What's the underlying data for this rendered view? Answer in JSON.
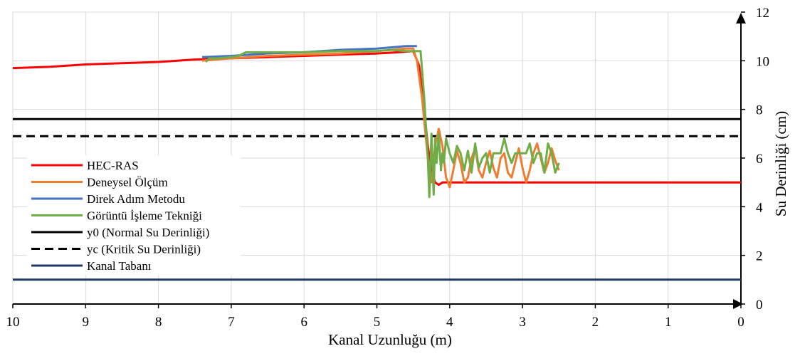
{
  "chart_data": {
    "type": "line",
    "xlabel": "Kanal Uzunluğu (m)",
    "ylabel": "Su Derinliği (cm)",
    "xlim": [
      10,
      0
    ],
    "ylim": [
      0,
      12
    ],
    "x_reversed": true,
    "xticks": [
      "10",
      "9",
      "8",
      "7",
      "6",
      "5",
      "4",
      "3",
      "2",
      "1",
      "0"
    ],
    "yticks": [
      "0",
      "2",
      "4",
      "6",
      "8",
      "10",
      "12"
    ],
    "grid": true,
    "legend_position": "left",
    "series": [
      {
        "name": "HEC-RAS",
        "color": "#ff0000",
        "dash": "solid",
        "x": [
          10,
          9.5,
          9,
          8.5,
          8,
          7.5,
          7,
          6.5,
          6,
          5.5,
          5,
          4.7,
          4.5,
          4.42,
          4.35,
          4.3,
          4.25,
          4.2,
          4.15,
          4.1,
          4.0,
          3.8,
          3.5,
          3.0,
          2.5,
          2.0,
          1.5,
          1.0,
          0.5,
          0
        ],
        "y": [
          9.7,
          9.75,
          9.85,
          9.9,
          9.95,
          10.05,
          10.1,
          10.15,
          10.2,
          10.25,
          10.3,
          10.35,
          10.4,
          9.8,
          8.0,
          6.5,
          5.5,
          5.0,
          4.9,
          5.0,
          5.0,
          5.0,
          5.0,
          5.0,
          5.0,
          5.0,
          5.0,
          5.0,
          5.0,
          5.0
        ]
      },
      {
        "name": "Deneysel Ölçüm",
        "color": "#ed7d31",
        "dash": "solid",
        "x": [
          7.4,
          7.0,
          6.5,
          6.0,
          5.5,
          5.0,
          4.8,
          4.6,
          4.5,
          4.45,
          4.38,
          4.3,
          4.25,
          4.2,
          4.15,
          4.1,
          4.05,
          4.0,
          3.95,
          3.9,
          3.85,
          3.8,
          3.75,
          3.7,
          3.65,
          3.6,
          3.55,
          3.5,
          3.45,
          3.4,
          3.35,
          3.3,
          3.25,
          3.2,
          3.15,
          3.1,
          3.05,
          3.0,
          2.95,
          2.9,
          2.85,
          2.8,
          2.75,
          2.7,
          2.65,
          2.6,
          2.55,
          2.5
        ],
        "y": [
          10.0,
          10.1,
          10.2,
          10.25,
          10.3,
          10.4,
          10.45,
          10.5,
          10.5,
          10.0,
          8.5,
          6.0,
          5.0,
          6.5,
          7.2,
          6.5,
          5.2,
          4.8,
          5.5,
          6.3,
          5.8,
          5.0,
          5.2,
          6.0,
          6.4,
          5.5,
          5.2,
          5.8,
          6.3,
          5.6,
          5.2,
          6.0,
          6.2,
          5.4,
          5.2,
          5.8,
          6.4,
          5.6,
          5.0,
          5.5,
          6.2,
          6.6,
          6.0,
          5.4,
          5.8,
          6.4,
          5.9,
          5.5
        ]
      },
      {
        "name": "Direk Adım Metodu",
        "color": "#4472c4",
        "dash": "solid",
        "x": [
          7.4,
          7.0,
          6.5,
          6.0,
          5.5,
          5.0,
          4.6,
          4.45
        ],
        "y": [
          10.15,
          10.2,
          10.3,
          10.35,
          10.45,
          10.5,
          10.6,
          10.6
        ]
      },
      {
        "name": "Görüntü İşleme Tekniği",
        "color": "#70ad47",
        "dash": "solid",
        "x": [
          7.35,
          7.3,
          7.2,
          7.0,
          6.9,
          6.8,
          6.5,
          6.0,
          5.5,
          5.0,
          4.8,
          4.6,
          4.4,
          4.35,
          4.3,
          4.28,
          4.25,
          4.22,
          4.2,
          4.18,
          4.15,
          4.12,
          4.1,
          4.08,
          4.05,
          4.0,
          3.95,
          3.9,
          3.85,
          3.8,
          3.75,
          3.7,
          3.65,
          3.6,
          3.55,
          3.5,
          3.45,
          3.4,
          3.35,
          3.3,
          3.25,
          3.2,
          3.15,
          3.1,
          3.05,
          3.0,
          2.95,
          2.9,
          2.85,
          2.8,
          2.75,
          2.7,
          2.65,
          2.6,
          2.55,
          2.5
        ],
        "y": [
          9.95,
          10.1,
          10.1,
          10.15,
          10.2,
          10.35,
          10.35,
          10.35,
          10.4,
          10.4,
          10.45,
          10.4,
          10.4,
          8.5,
          6.0,
          4.4,
          7.0,
          4.5,
          6.8,
          5.8,
          7.0,
          5.5,
          6.2,
          5.8,
          6.8,
          6.2,
          5.8,
          6.5,
          6.2,
          5.5,
          6.3,
          5.4,
          6.6,
          5.6,
          6.0,
          6.2,
          5.4,
          6.2,
          6.2,
          6.2,
          6.8,
          6.2,
          5.8,
          6.2,
          6.2,
          6.2,
          6.2,
          6.6,
          5.8,
          6.2,
          6.2,
          5.4,
          6.6,
          6.2,
          5.4,
          5.8
        ]
      },
      {
        "name": "y0 (Normal Su Derinliği)",
        "color": "#000000",
        "dash": "solid",
        "x": [
          10,
          0
        ],
        "y": [
          7.6,
          7.6
        ]
      },
      {
        "name": "yc (Kritik Su Derinliği)",
        "color": "#000000",
        "dash": "dashed",
        "x": [
          10,
          0
        ],
        "y": [
          6.9,
          6.9
        ]
      },
      {
        "name": "Kanal Tabanı",
        "color": "#1f3864",
        "dash": "solid",
        "x": [
          10,
          0
        ],
        "y": [
          1.0,
          1.0
        ]
      }
    ]
  }
}
